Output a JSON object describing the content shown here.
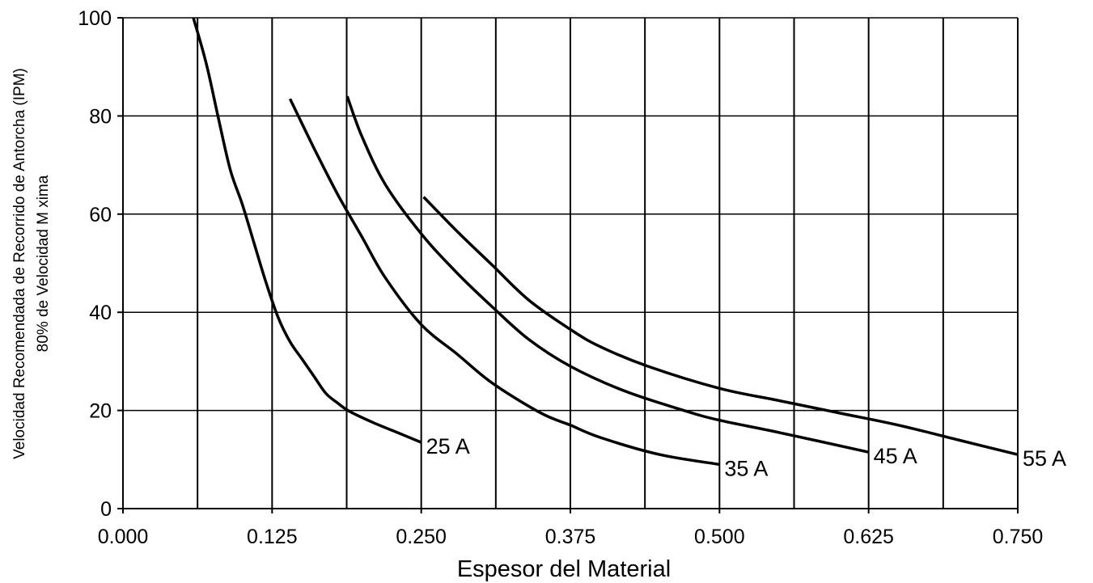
{
  "chart_data": {
    "type": "line",
    "title": "",
    "xlabel": "Espesor del Material",
    "ylabel_lines": [
      "Velocidad Recomendada de Recorrido de Antorcha (IPM)",
      "80% de Velocidad M xima"
    ],
    "xlim": [
      0.0,
      0.75
    ],
    "ylim": [
      0,
      100
    ],
    "x_tick_labels": [
      "0.000",
      "0.125",
      "0.250",
      "0.375",
      "0.500",
      "0.625",
      "0.750"
    ],
    "x_tick_values": [
      0.0,
      0.125,
      0.25,
      0.375,
      0.5,
      0.625,
      0.75
    ],
    "y_tick_labels": [
      "0",
      "20",
      "40",
      "60",
      "80",
      "100"
    ],
    "y_tick_values": [
      0,
      20,
      40,
      60,
      80,
      100
    ],
    "vertical_gridlines": [
      0.0625,
      0.125,
      0.1875,
      0.25,
      0.3125,
      0.375,
      0.4375,
      0.5,
      0.5625,
      0.625,
      0.6875,
      0.75
    ],
    "horizontal_gridlines": [
      20,
      40,
      60,
      80,
      100
    ],
    "grid": true,
    "legend": "none",
    "series": [
      {
        "name": "25 A",
        "x": [
          0.059,
          0.07,
          0.08,
          0.09,
          0.1,
          0.11,
          0.12,
          0.13,
          0.14,
          0.15,
          0.16,
          0.17,
          0.18,
          0.19,
          0.21,
          0.23,
          0.25
        ],
        "y": [
          100,
          90.5,
          79.5,
          69,
          62,
          54,
          46,
          39,
          34,
          30.5,
          27,
          23.5,
          21.5,
          19.8,
          17.5,
          15.5,
          13.5
        ]
      },
      {
        "name": "35 A",
        "x": [
          0.14,
          0.16,
          0.18,
          0.2,
          0.22,
          0.25,
          0.28,
          0.31,
          0.35,
          0.375,
          0.4,
          0.45,
          0.5
        ],
        "y": [
          83.5,
          73.5,
          64,
          55.5,
          47,
          37.5,
          31.5,
          25.5,
          19.5,
          17,
          14.5,
          11,
          9
        ]
      },
      {
        "name": "45 A",
        "x": [
          0.188,
          0.2,
          0.22,
          0.25,
          0.28,
          0.31,
          0.34,
          0.375,
          0.42,
          0.47,
          0.5,
          0.55,
          0.625
        ],
        "y": [
          84,
          76,
          66,
          56,
          48,
          41,
          34.5,
          29,
          24,
          20,
          18,
          15.5,
          11.5
        ]
      },
      {
        "name": "55 A",
        "x": [
          0.252,
          0.28,
          0.31,
          0.34,
          0.375,
          0.4,
          0.44,
          0.5,
          0.55,
          0.6,
          0.65,
          0.7,
          0.75
        ],
        "y": [
          63.5,
          56.5,
          49.5,
          42.5,
          36.5,
          33,
          29,
          24.5,
          22,
          19.5,
          17,
          14,
          11
        ]
      }
    ]
  }
}
